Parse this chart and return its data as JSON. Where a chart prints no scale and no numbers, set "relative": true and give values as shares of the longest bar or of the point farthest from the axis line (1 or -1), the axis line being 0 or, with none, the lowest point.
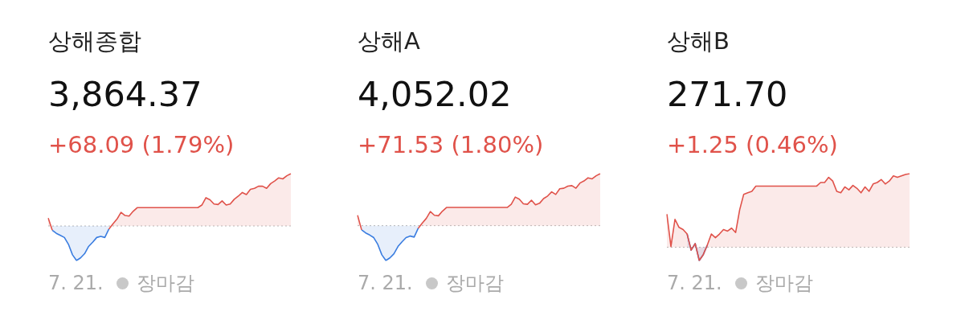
{
  "chart_data": [
    {
      "type": "area",
      "title": "상해종합",
      "subtitle": "3,864.37",
      "annotations": [
        "+68.09 (1.79%)",
        "7. 21.",
        "장마감"
      ],
      "relative": true,
      "legend": false,
      "categories": [
        null,
        null,
        null,
        null,
        null,
        null,
        null,
        null,
        null,
        null,
        null,
        null,
        null,
        null,
        null,
        null,
        null,
        null,
        null,
        null,
        null,
        null,
        null,
        null,
        null,
        null,
        null,
        null,
        null,
        null,
        null,
        null,
        null,
        null,
        null,
        null,
        null,
        null,
        null,
        null,
        null,
        null,
        null,
        null,
        null,
        null,
        null,
        null,
        null,
        null,
        null,
        null,
        null,
        null,
        null,
        null,
        null,
        null,
        null,
        null,
        null
      ],
      "series": [
        {
          "color": "#e0524a",
          "values": [
            0.15,
            -0.08,
            null,
            null,
            null,
            null,
            null,
            null,
            null,
            null,
            null,
            null,
            null,
            null,
            null,
            -0.06,
            0.04,
            0.13,
            0.26,
            0.2,
            0.19,
            0.28,
            0.35,
            0.35,
            0.35,
            0.35,
            0.35,
            0.35,
            0.35,
            0.35,
            0.35,
            0.35,
            0.35,
            0.35,
            0.35,
            0.35,
            0.35,
            0.35,
            0.4,
            0.54,
            0.5,
            0.42,
            0.41,
            0.48,
            0.4,
            0.42,
            0.51,
            0.57,
            0.64,
            0.6,
            0.7,
            0.72,
            0.76,
            0.76,
            0.72,
            0.81,
            0.86,
            0.92,
            0.9,
            0.96,
            1
          ]
        },
        {
          "color": "#3a7de0",
          "values": [
            null,
            -0.08,
            -0.14,
            -0.18,
            -0.22,
            -0.35,
            -0.55,
            -0.66,
            -0.61,
            -0.53,
            -0.39,
            -0.31,
            -0.22,
            -0.2,
            -0.22,
            -0.06,
            null,
            null,
            null,
            null,
            null,
            null,
            null,
            null,
            null,
            null,
            null,
            null,
            null,
            null,
            null,
            null,
            null,
            null,
            null,
            null,
            null,
            null,
            null,
            null,
            null,
            null,
            null,
            null,
            null,
            null,
            null,
            null,
            null,
            null,
            null,
            null,
            null,
            null,
            null,
            null,
            null,
            null,
            null,
            null,
            null
          ]
        }
      ],
      "ref_lines": [
        {
          "axis": "y",
          "value": 0,
          "color": "#bbbbbb",
          "line_style": "dotted"
        }
      ]
    },
    {
      "type": "area",
      "title": "상해A",
      "subtitle": "4,052.02",
      "annotations": [
        "+71.53 (1.80%)",
        "7. 21.",
        "장마감"
      ],
      "relative": true,
      "legend": false,
      "categories": [
        null,
        null,
        null,
        null,
        null,
        null,
        null,
        null,
        null,
        null,
        null,
        null,
        null,
        null,
        null,
        null,
        null,
        null,
        null,
        null,
        null,
        null,
        null,
        null,
        null,
        null,
        null,
        null,
        null,
        null,
        null,
        null,
        null,
        null,
        null,
        null,
        null,
        null,
        null,
        null,
        null,
        null,
        null,
        null,
        null,
        null,
        null,
        null,
        null,
        null,
        null,
        null,
        null,
        null,
        null,
        null,
        null,
        null,
        null,
        null,
        null
      ],
      "series": [
        {
          "color": "#e0524a",
          "values": [
            0.2,
            -0.08,
            null,
            null,
            null,
            null,
            null,
            null,
            null,
            null,
            null,
            null,
            null,
            null,
            null,
            -0.05,
            0.05,
            0.14,
            0.27,
            0.2,
            0.19,
            0.28,
            0.35,
            0.35,
            0.35,
            0.35,
            0.35,
            0.35,
            0.35,
            0.35,
            0.35,
            0.35,
            0.35,
            0.35,
            0.35,
            0.35,
            0.35,
            0.35,
            0.41,
            0.55,
            0.51,
            0.42,
            0.41,
            0.49,
            0.4,
            0.43,
            0.52,
            0.57,
            0.65,
            0.6,
            0.71,
            0.72,
            0.76,
            0.77,
            0.72,
            0.82,
            0.86,
            0.92,
            0.9,
            0.96,
            1
          ]
        },
        {
          "color": "#3a7de0",
          "values": [
            null,
            -0.08,
            -0.14,
            -0.18,
            -0.23,
            -0.36,
            -0.56,
            -0.67,
            -0.62,
            -0.54,
            -0.4,
            -0.31,
            -0.23,
            -0.2,
            -0.22,
            -0.05,
            null,
            null,
            null,
            null,
            null,
            null,
            null,
            null,
            null,
            null,
            null,
            null,
            null,
            null,
            null,
            null,
            null,
            null,
            null,
            null,
            null,
            null,
            null,
            null,
            null,
            null,
            null,
            null,
            null,
            null,
            null,
            null,
            null,
            null,
            null,
            null,
            null,
            null,
            null,
            null,
            null,
            null,
            null,
            null,
            null
          ]
        }
      ],
      "ref_lines": [
        {
          "axis": "y",
          "value": 0,
          "color": "#bbbbbb",
          "line_style": "dotted"
        }
      ]
    },
    {
      "type": "area",
      "title": "상해B",
      "subtitle": "271.70",
      "annotations": [
        "+1.25 (0.46%)",
        "7. 21.",
        "장마감"
      ],
      "relative": true,
      "legend": false,
      "categories": [
        null,
        null,
        null,
        null,
        null,
        null,
        null,
        null,
        null,
        null,
        null,
        null,
        null,
        null,
        null,
        null,
        null,
        null,
        null,
        null,
        null,
        null,
        null,
        null,
        null,
        null,
        null,
        null,
        null,
        null,
        null,
        null,
        null,
        null,
        null,
        null,
        null,
        null,
        null,
        null,
        null,
        null,
        null,
        null,
        null,
        null,
        null,
        null,
        null,
        null,
        null,
        null,
        null,
        null,
        null,
        null,
        null,
        null,
        null,
        null,
        null
      ],
      "series": [
        {
          "color": "#e0524a",
          "values": [
            0.45,
            0.01,
            0.38,
            0.27,
            0.24,
            0.18,
            -0.04,
            0.05,
            -0.18,
            -0.1,
            0.03,
            0.18,
            0.13,
            0.18,
            0.24,
            0.22,
            0.26,
            0.2,
            0.51,
            0.72,
            0.74,
            0.76,
            0.83,
            0.83,
            0.83,
            0.83,
            0.83,
            0.83,
            0.83,
            0.83,
            0.83,
            0.83,
            0.83,
            0.83,
            0.83,
            0.83,
            0.83,
            0.83,
            0.88,
            0.88,
            0.95,
            0.9,
            0.76,
            0.74,
            0.82,
            0.78,
            0.84,
            0.8,
            0.74,
            0.82,
            0.76,
            0.86,
            0.88,
            0.92,
            0.86,
            0.9,
            0.97,
            0.95,
            0.97,
            0.99,
            1
          ]
        },
        {
          "color": "#3a7de0",
          "values": [
            null,
            null,
            null,
            null,
            null,
            0.18,
            -0.04,
            0.05,
            -0.18,
            -0.1,
            0.03,
            null,
            null,
            null,
            null,
            null,
            null,
            null,
            null,
            null,
            null,
            null,
            null,
            null,
            null,
            null,
            null,
            null,
            null,
            null,
            null,
            null,
            null,
            null,
            null,
            null,
            null,
            null,
            null,
            null,
            null,
            null,
            null,
            null,
            null,
            null,
            null,
            null,
            null,
            null,
            null,
            null,
            null,
            null,
            null,
            null,
            null,
            null,
            null,
            null,
            null
          ]
        }
      ],
      "ref_lines": [
        {
          "axis": "y",
          "value": 0,
          "color": "#bbbbbb",
          "line_style": "dotted"
        }
      ]
    }
  ]
}
